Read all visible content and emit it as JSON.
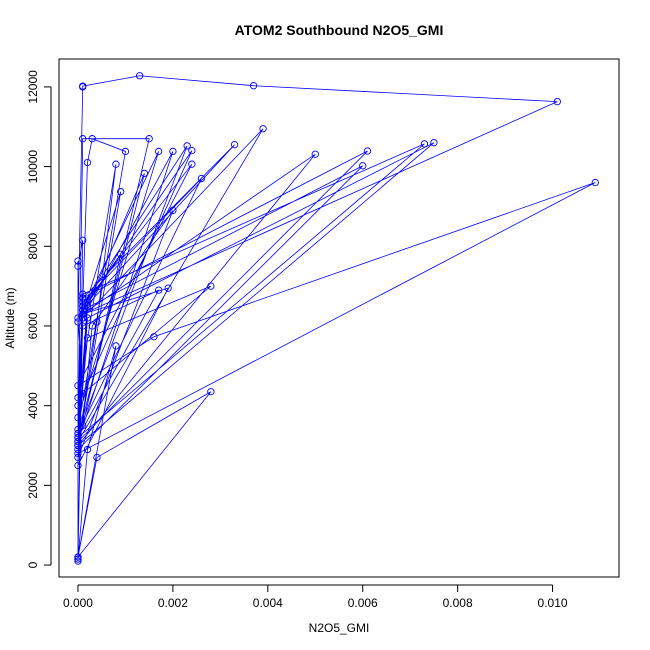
{
  "chart_data": {
    "type": "line",
    "title": "ATOM2 Southbound N2O5_GMI",
    "xlabel": "N2O5_GMI",
    "ylabel": "Altitude (m)",
    "xlim": [
      -0.0004,
      0.0114
    ],
    "ylim": [
      -300,
      12700
    ],
    "xticks": [
      0.0,
      0.002,
      0.004,
      0.006,
      0.008,
      0.01
    ],
    "xtick_labels": [
      "0.000",
      "0.002",
      "0.004",
      "0.006",
      "0.008",
      "0.010"
    ],
    "yticks": [
      0,
      2000,
      4000,
      6000,
      8000,
      10000,
      12000
    ],
    "ytick_labels": [
      "0",
      "2000",
      "4000",
      "6000",
      "8000",
      "10000",
      "12000"
    ],
    "grid": false,
    "color": "#0000ff",
    "marker": "open-circle",
    "series": [
      {
        "x": [
          0.0,
          0.0,
          0.0001,
          0.0001,
          0.0013,
          0.0037,
          0.0101,
          0.0001,
          0.0,
          0.0001,
          0.0015,
          0.0,
          0.0002,
          0.0003,
          0.001,
          0.0,
          0.0001,
          0.0017,
          0.0,
          0.0001,
          0.002,
          0.0,
          0.0001,
          0.0023,
          0.0,
          0.0002,
          0.0024,
          0.0,
          0.0001,
          0.0033,
          0.0001,
          0.0,
          0.0039,
          0.0001,
          0.0,
          0.005,
          0.0001,
          0.0,
          0.006,
          0.0001,
          0.0,
          0.0061,
          0.0001,
          0.0,
          0.0073,
          0.0001,
          0.0,
          0.0075,
          0.0002,
          0.0,
          0.0109,
          0.0016,
          0.0,
          0.0024,
          0.0001,
          0.0,
          0.0026,
          0.0001,
          0.0,
          0.0008,
          0.0004,
          0.0,
          0.0009,
          0.0001,
          0.0,
          0.0014,
          0.0002,
          0.0,
          0.002,
          0.0003,
          0.0001,
          0.0009,
          0.0,
          0.0001,
          0.0028,
          0.0002,
          0.0,
          0.0017,
          0.0001,
          0.0,
          0.0019,
          0.0001,
          0.0,
          0.0028,
          0.0004,
          0.0,
          0.0008,
          0.0002,
          0.0,
          0.0001,
          0.0,
          0.0,
          0.0
        ],
        "y": [
          150,
          6100,
          12000,
          12020,
          12280,
          12030,
          11630,
          6300,
          3200,
          10700,
          10700,
          3000,
          10100,
          10700,
          10380,
          3400,
          6400,
          10380,
          3700,
          6200,
          10380,
          3100,
          6500,
          10520,
          3300,
          6600,
          10400,
          4000,
          6700,
          10550,
          6400,
          3100,
          10950,
          6200,
          3000,
          10310,
          6300,
          2900,
          10020,
          6400,
          3100,
          10390,
          6700,
          3200,
          10570,
          6800,
          3000,
          10600,
          6200,
          2800,
          9600,
          5730,
          4500,
          10060,
          6500,
          3300,
          9700,
          6600,
          4200,
          10060,
          6100,
          3000,
          9370,
          6300,
          3200,
          9830,
          6500,
          2700,
          8900,
          6000,
          3500,
          7800,
          6200,
          4300,
          7000,
          5700,
          3200,
          6900,
          6000,
          2500,
          6950,
          6300,
          200,
          4350,
          2700,
          200,
          5500,
          2900,
          150,
          8150,
          7500,
          7630,
          100
        ]
      }
    ]
  }
}
